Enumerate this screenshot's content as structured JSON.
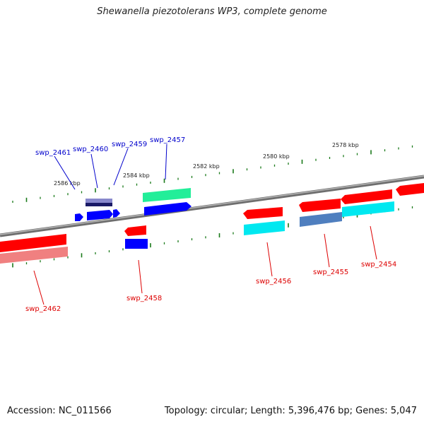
{
  "title": "Shewanella piezotolerans WP3, complete genome",
  "accession": "Accession: NC_011566",
  "summary": "Topology: circular; Length: 5,396,476 bp; Genes: 5,047",
  "ruler_labels": [
    "2586 kbp",
    "2584 kbp",
    "2582 kbp",
    "2580 kbp",
    "2578 kbp"
  ],
  "gene_labels_top": [
    "swp_2461",
    "swp_2460",
    "swp_2459",
    "swp_2457"
  ],
  "gene_labels_bottom": [
    "swp_2462",
    "swp_2458",
    "swp_2456",
    "swp_2455",
    "swp_2454"
  ],
  "colors": {
    "backbone": "#808080",
    "label_top": "#0000cc",
    "label_bottom": "#dd0000",
    "tick": "#1a7a1a",
    "red": "#ff0000",
    "pink": "#f08080",
    "blue": "#0000ff",
    "green": "#22ee99",
    "cyan": "#00e8f0",
    "steel": "#4f7fbf",
    "lavender": "#8888cc"
  }
}
